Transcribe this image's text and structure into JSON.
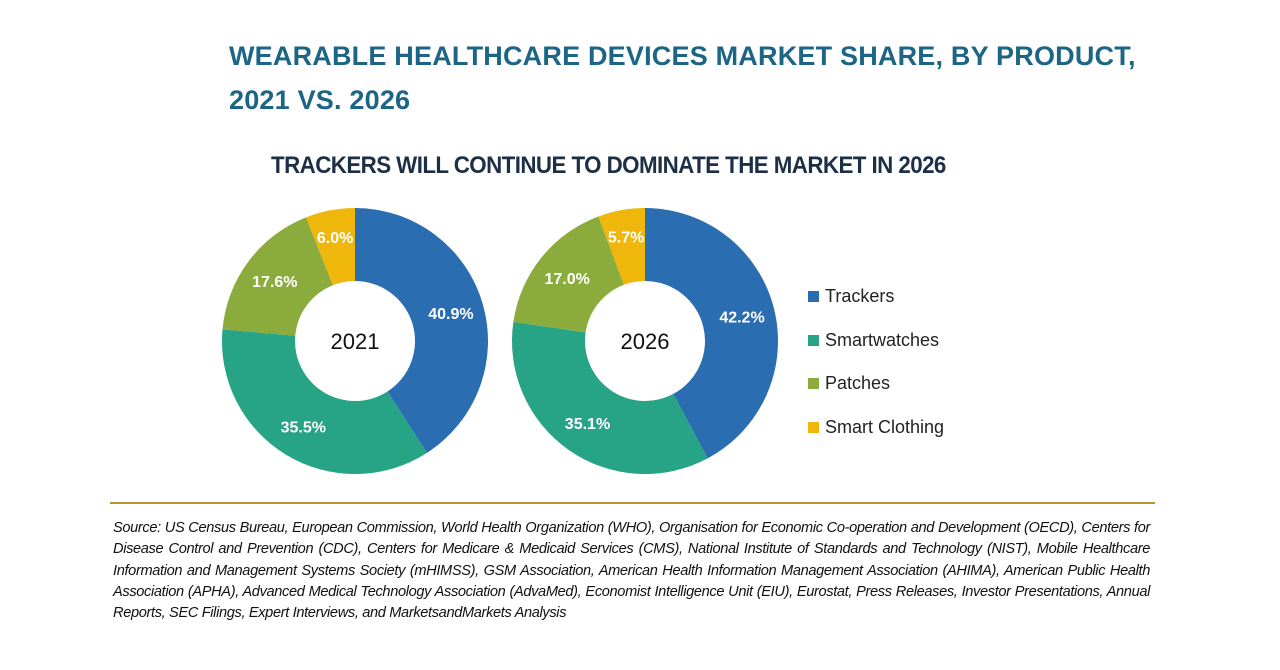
{
  "chart_data": {
    "type": "pie",
    "title": "WEARABLE HEALTHCARE DEVICES MARKET SHARE, BY PRODUCT, 2021 VS. 2026",
    "subtitle": "TRACKERS WILL CONTINUE TO DOMINATE THE MARKET IN 2026",
    "categories": [
      "Trackers",
      "Smartwatches",
      "Patches",
      "Smart Clothing"
    ],
    "colors": [
      "#2a6db1",
      "#27a386",
      "#8bac3c",
      "#efb60c"
    ],
    "legend_position": "right",
    "series": [
      {
        "name": "2021",
        "values": [
          40.9,
          35.5,
          17.6,
          6.0
        ],
        "labels": [
          "40.9%",
          "35.5%",
          "17.6%",
          "6.0%"
        ]
      },
      {
        "name": "2026",
        "values": [
          42.2,
          35.1,
          17.0,
          5.7
        ],
        "labels": [
          "42.2%",
          "35.1%",
          "17.0%",
          "5.7%"
        ]
      }
    ]
  },
  "source": "Source: US Census Bureau, European Commission, World Health Organization (WHO), Organisation for Economic Co-operation and Development (OECD), Centers for Disease Control and Prevention (CDC), Centers for Medicare & Medicaid Services (CMS), National Institute of Standards and Technology (NIST), Mobile Healthcare Information and Management Systems Society (mHIMSS), GSM Association, American Health Information Management Association (AHIMA), American Public Health Association (APHA), Advanced Medical Technology Association (AdvaMed), Economist Intelligence Unit (EIU), Eurostat, Press Releases, Investor Presentations, Annual Reports, SEC Filings, Expert Interviews, and MarketsandMarkets Analysis"
}
